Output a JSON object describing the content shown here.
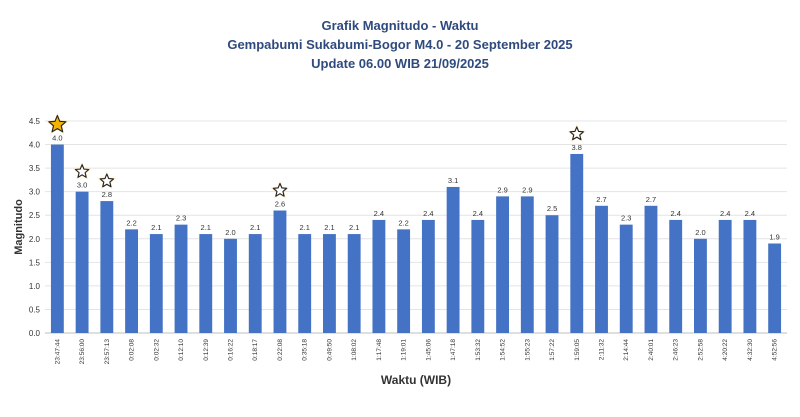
{
  "chart_data": {
    "type": "bar",
    "title": "Grafik Magnitudo - Waktu",
    "subtitle": "Gempabumi Sukabumi-Bogor M4.0 - 20 September 2025",
    "subtitle2": "Update 06.00 WIB 21/09/2025",
    "xlabel": "Waktu (WIB)",
    "ylabel": "Magnitudo",
    "ylim": [
      0,
      4.5
    ],
    "yticks": [
      "0.0",
      "0.5",
      "1.0",
      "1.5",
      "2.0",
      "2.5",
      "3.0",
      "3.5",
      "4.0",
      "4.5"
    ],
    "grid": true,
    "bar_color": "#4472c4",
    "star_color_main": "#f5b301",
    "star_color_other": "#ffffff",
    "categories": [
      "23:47:44",
      "23:56:00",
      "23:57:13",
      "0:02:08",
      "0:02:32",
      "0:12:10",
      "0:12:39",
      "0:16:22",
      "0:18:17",
      "0:22:08",
      "0:35:18",
      "0:49:50",
      "1:08:02",
      "1:17:48",
      "1:19:01",
      "1:45:06",
      "1:47:18",
      "1:53:32",
      "1:54:52",
      "1:55:23",
      "1:57:22",
      "1:59:05",
      "2:11:32",
      "2:14:44",
      "2:40:01",
      "2:46:23",
      "2:52:58",
      "4:20:22",
      "4:32:30",
      "4:52:56"
    ],
    "values": [
      4.0,
      3.0,
      2.8,
      2.2,
      2.1,
      2.3,
      2.1,
      2.0,
      2.1,
      2.6,
      2.1,
      2.1,
      2.1,
      2.4,
      2.2,
      2.4,
      3.1,
      2.4,
      2.9,
      2.9,
      2.5,
      3.8,
      2.7,
      2.3,
      2.7,
      2.4,
      2.0,
      2.4,
      2.4,
      1.9
    ],
    "value_labels": [
      "4.0",
      "3.0",
      "2.8",
      "2.2",
      "2.1",
      "2.3",
      "2.1",
      "2.0",
      "2.1",
      "2.6",
      "2.1",
      "2.1",
      "2.1",
      "2.4",
      "2.2",
      "2.4",
      "3.1",
      "2.4",
      "2.9",
      "2.9",
      "2.5",
      "3.8",
      "2.7",
      "2.3",
      "2.7",
      "2.4",
      "2.0",
      "2.4",
      "2.4",
      "1.9"
    ],
    "starred_indices": [
      0,
      1,
      2,
      9,
      21
    ],
    "main_star_index": 0
  }
}
